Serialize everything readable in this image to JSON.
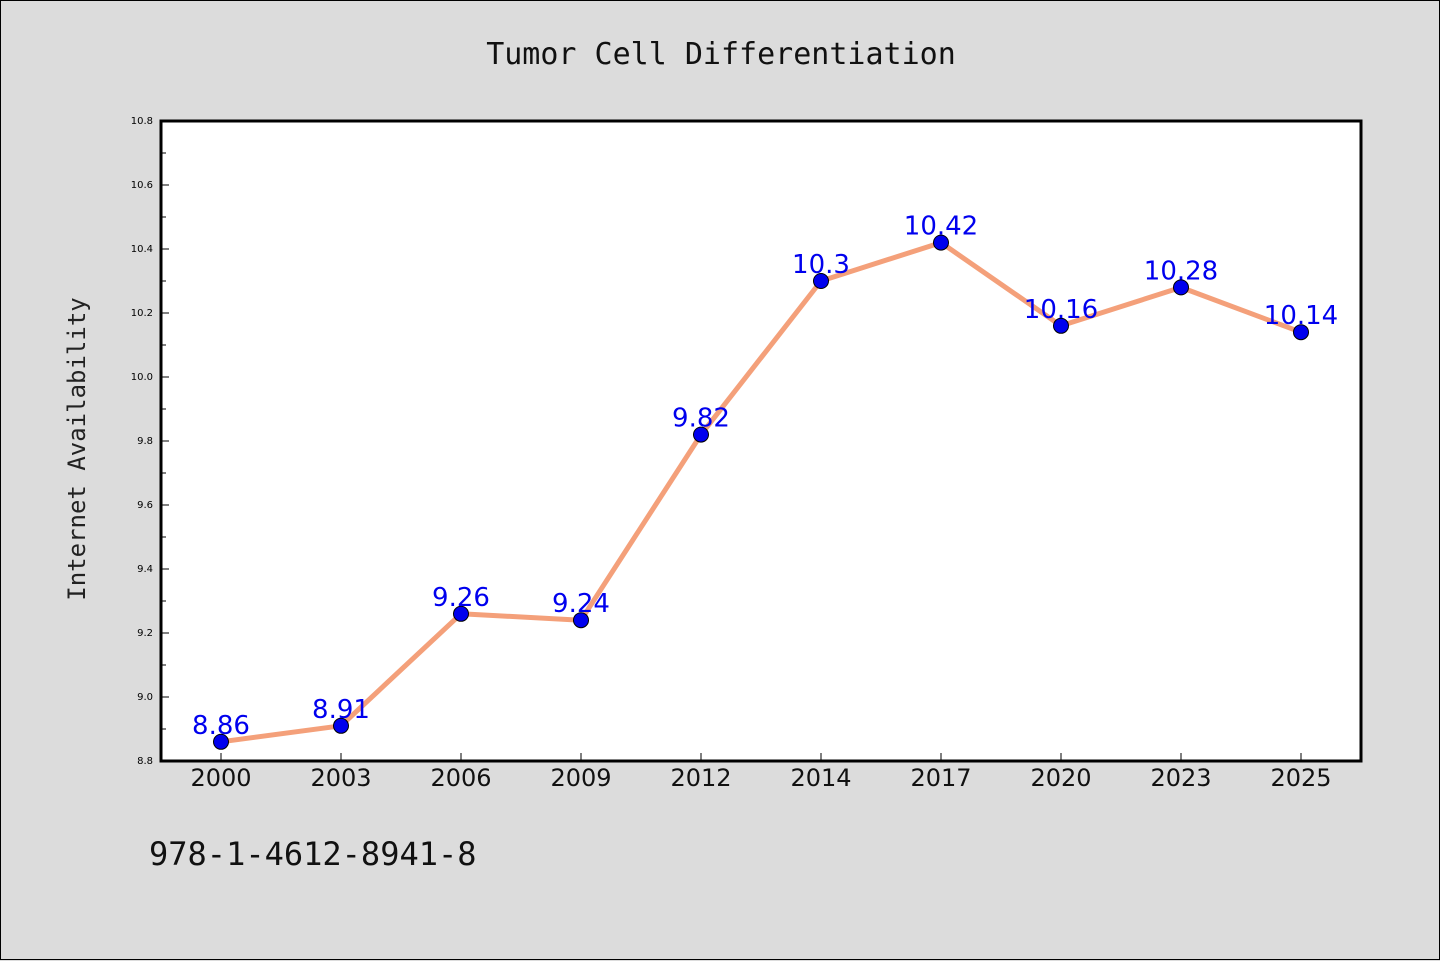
{
  "chart_data": {
    "type": "line",
    "title": "Tumor Cell Differentiation",
    "xlabel": "",
    "ylabel": "Internet Availability",
    "categories": [
      "2000",
      "2003",
      "2006",
      "2009",
      "2012",
      "2014",
      "2017",
      "2020",
      "2023",
      "2025"
    ],
    "series": [
      {
        "values": [
          8.86,
          8.91,
          9.26,
          9.24,
          9.82,
          10.3,
          10.42,
          10.16,
          10.28,
          10.14
        ],
        "labels": [
          "8.86",
          "8.91",
          "9.26",
          "9.24",
          "9.82",
          "10.3",
          "10.42",
          "10.16",
          "10.28",
          "10.14"
        ]
      }
    ],
    "ylim": [
      8.8,
      10.8
    ],
    "yticks": [
      "8.8",
      "9.0",
      "9.2",
      "9.4",
      "9.6",
      "9.8",
      "10.0",
      "10.2",
      "10.4",
      "10.6",
      "10.8"
    ],
    "grid": false,
    "legend": "none",
    "colors": {
      "line": "#f4a07a",
      "marker": "#0000ee",
      "label": "#0000ee",
      "background": "#dcdcdc",
      "plot_area": "#ffffff"
    }
  },
  "footer": {
    "isbn": "978-1-4612-8941-8"
  }
}
